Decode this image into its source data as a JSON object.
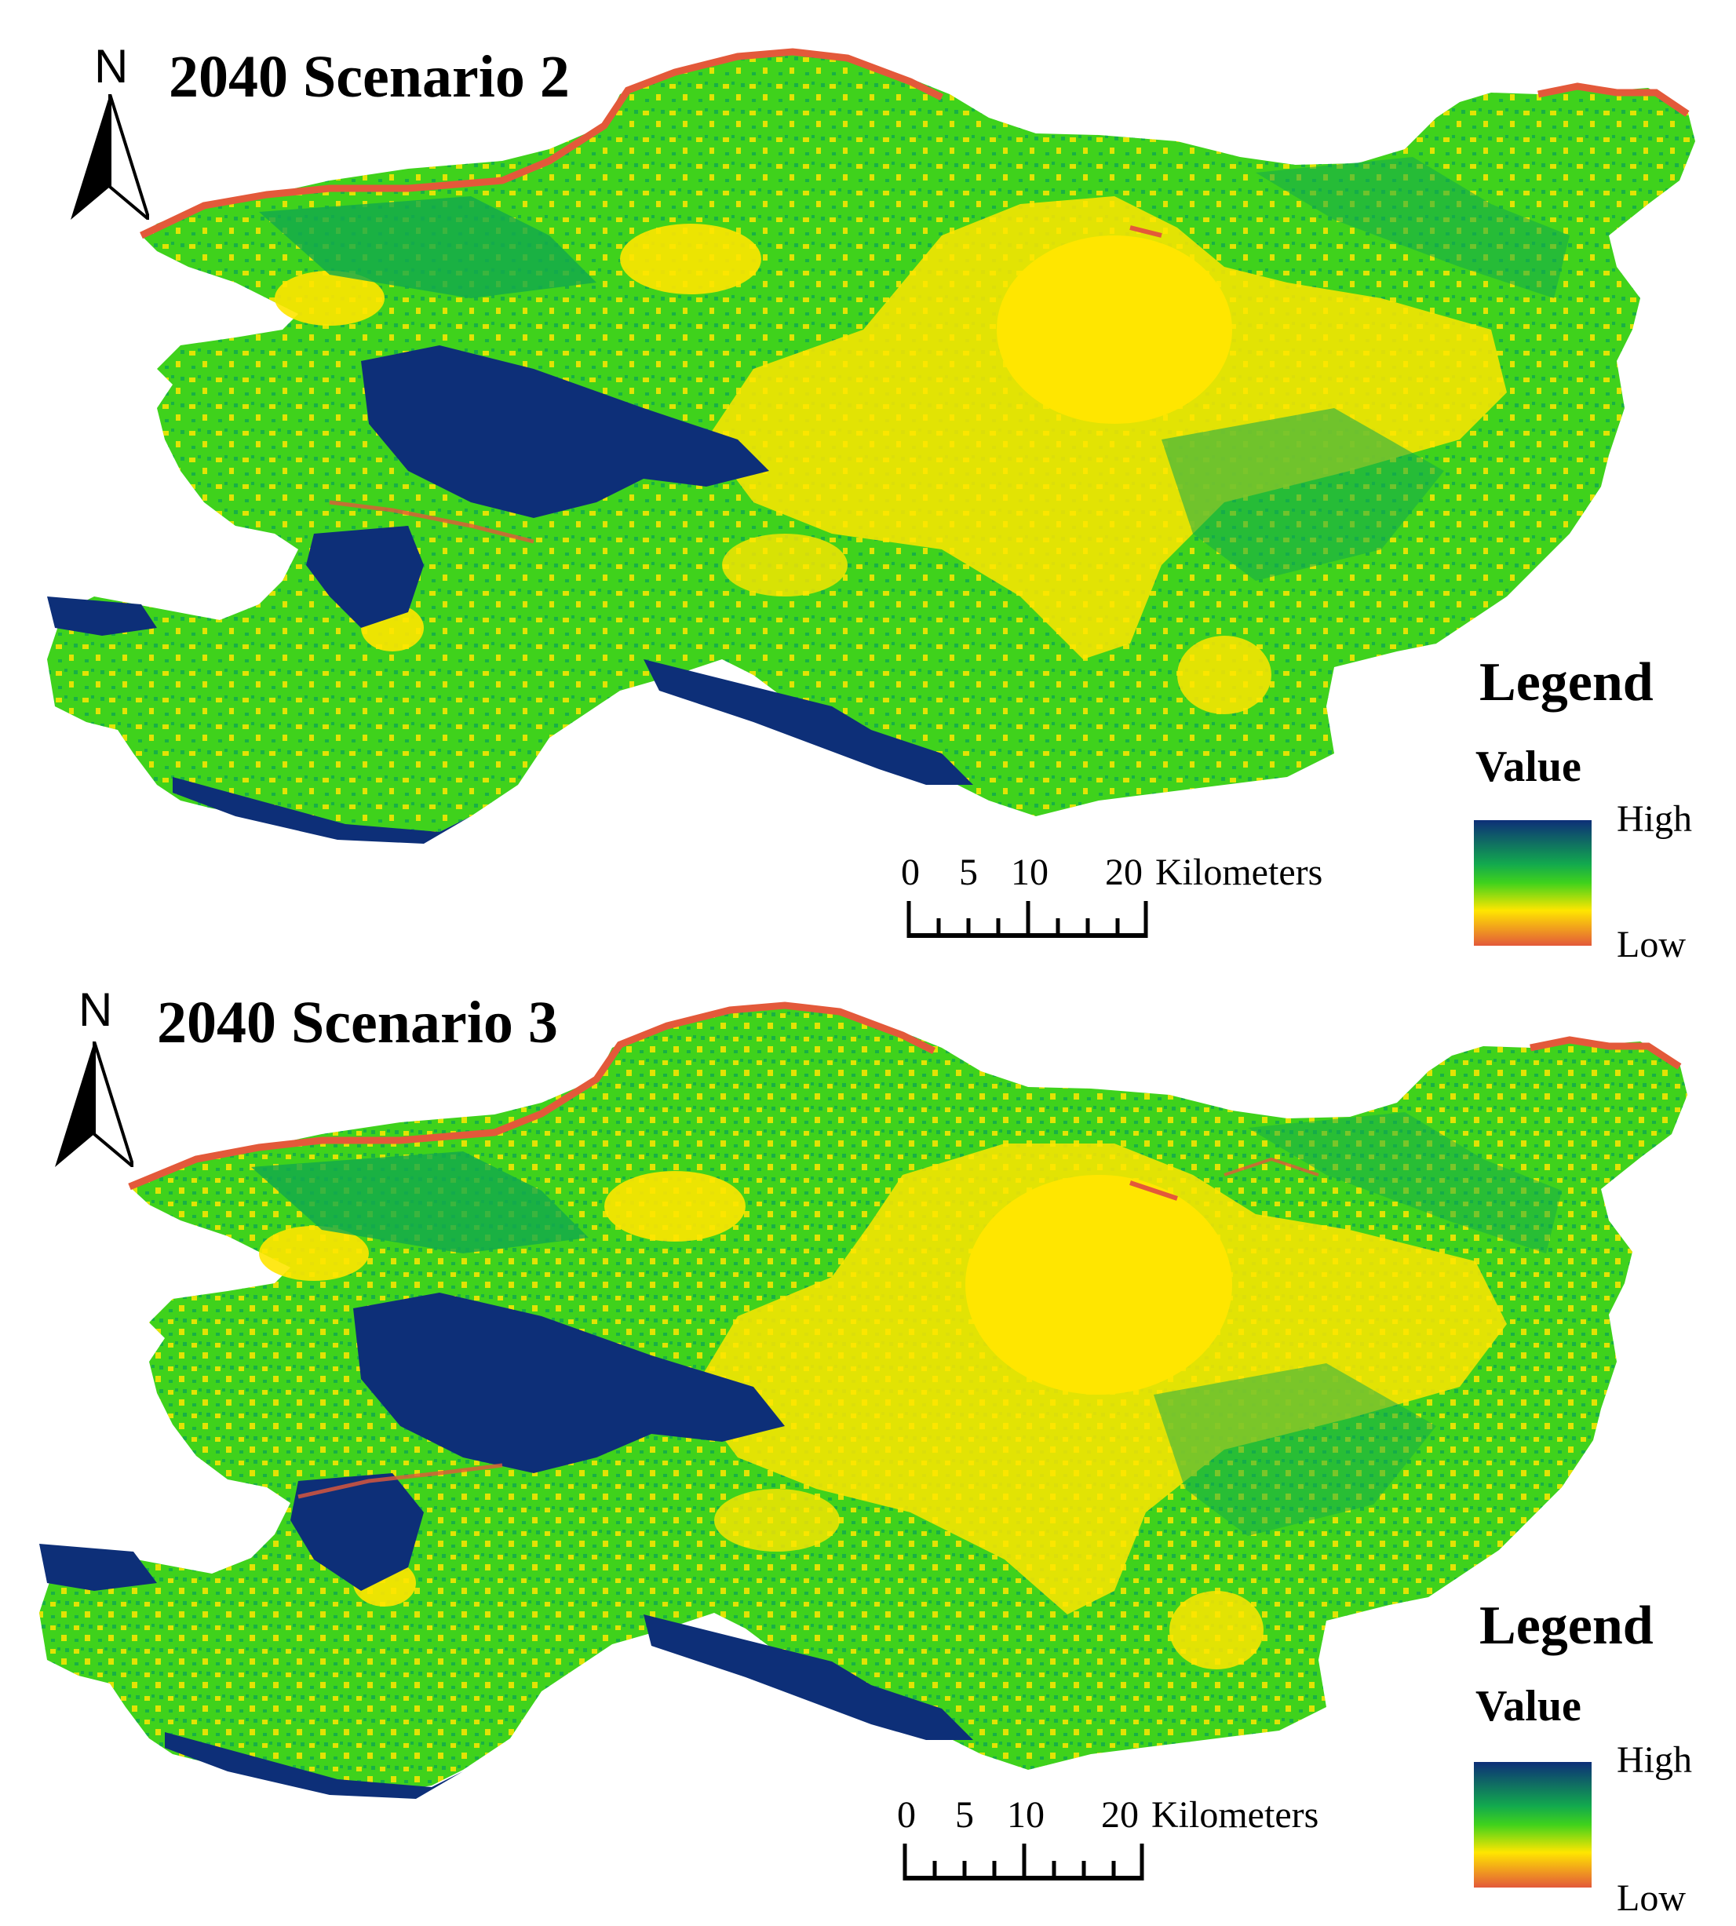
{
  "panels": [
    {
      "title": "2040 Scenario 2",
      "north": "N",
      "legend": {
        "title": "Legend",
        "field": "Value",
        "high": "High",
        "low": "Low"
      },
      "scale": {
        "ticks": [
          "0",
          "5",
          "10",
          "20"
        ],
        "unit": "Kilometers"
      }
    },
    {
      "title": "2040 Scenario 3",
      "north": "N",
      "legend": {
        "title": "Legend",
        "field": "Value",
        "high": "High",
        "low": "Low"
      },
      "scale": {
        "ticks": [
          "0",
          "5",
          "10",
          "20"
        ],
        "unit": "Kilometers"
      }
    }
  ],
  "colors": {
    "high": "#0d2f78",
    "mid_high": "#12a94e",
    "mid": "#3fd21c",
    "mid_low": "#ffe600",
    "low": "#e3593a"
  }
}
